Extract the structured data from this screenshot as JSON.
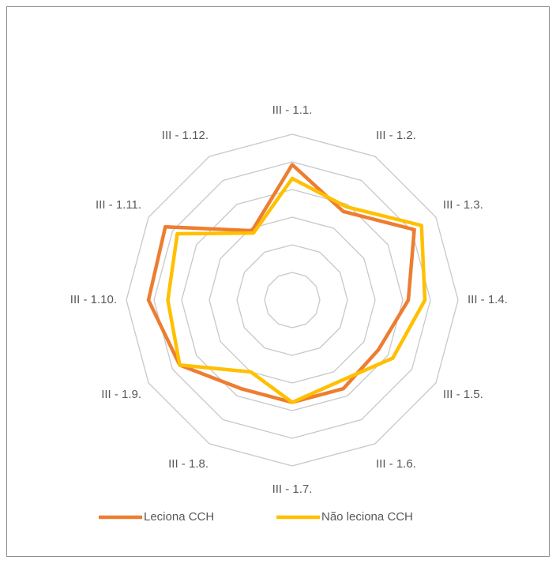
{
  "chart_data": {
    "type": "radar",
    "categories": [
      "III - 1.1.",
      "III - 1.2.",
      "III - 1.3.",
      "III - 1.4.",
      "III - 1.5.",
      "III - 1.6.",
      "III - 1.7.",
      "III - 1.8.",
      "III - 1.9.",
      "III - 1.10.",
      "III - 1.11.",
      "III - 1.12."
    ],
    "series": [
      {
        "name": "Leciona CCH",
        "color": "#ed7d31",
        "values": [
          4.9,
          3.7,
          5.1,
          4.2,
          3.6,
          3.7,
          3.7,
          3.7,
          4.7,
          5.2,
          5.3,
          2.9
        ]
      },
      {
        "name": "Não leciona CCH",
        "color": "#ffc000",
        "values": [
          4.4,
          3.9,
          5.4,
          4.8,
          4.2,
          3.4,
          3.7,
          3.0,
          4.7,
          4.5,
          4.8,
          2.8
        ]
      }
    ],
    "ylim": [
      0,
      6
    ],
    "yticks": [
      1,
      2,
      3,
      4,
      5,
      6
    ],
    "grid": true,
    "legend": "bottom"
  }
}
